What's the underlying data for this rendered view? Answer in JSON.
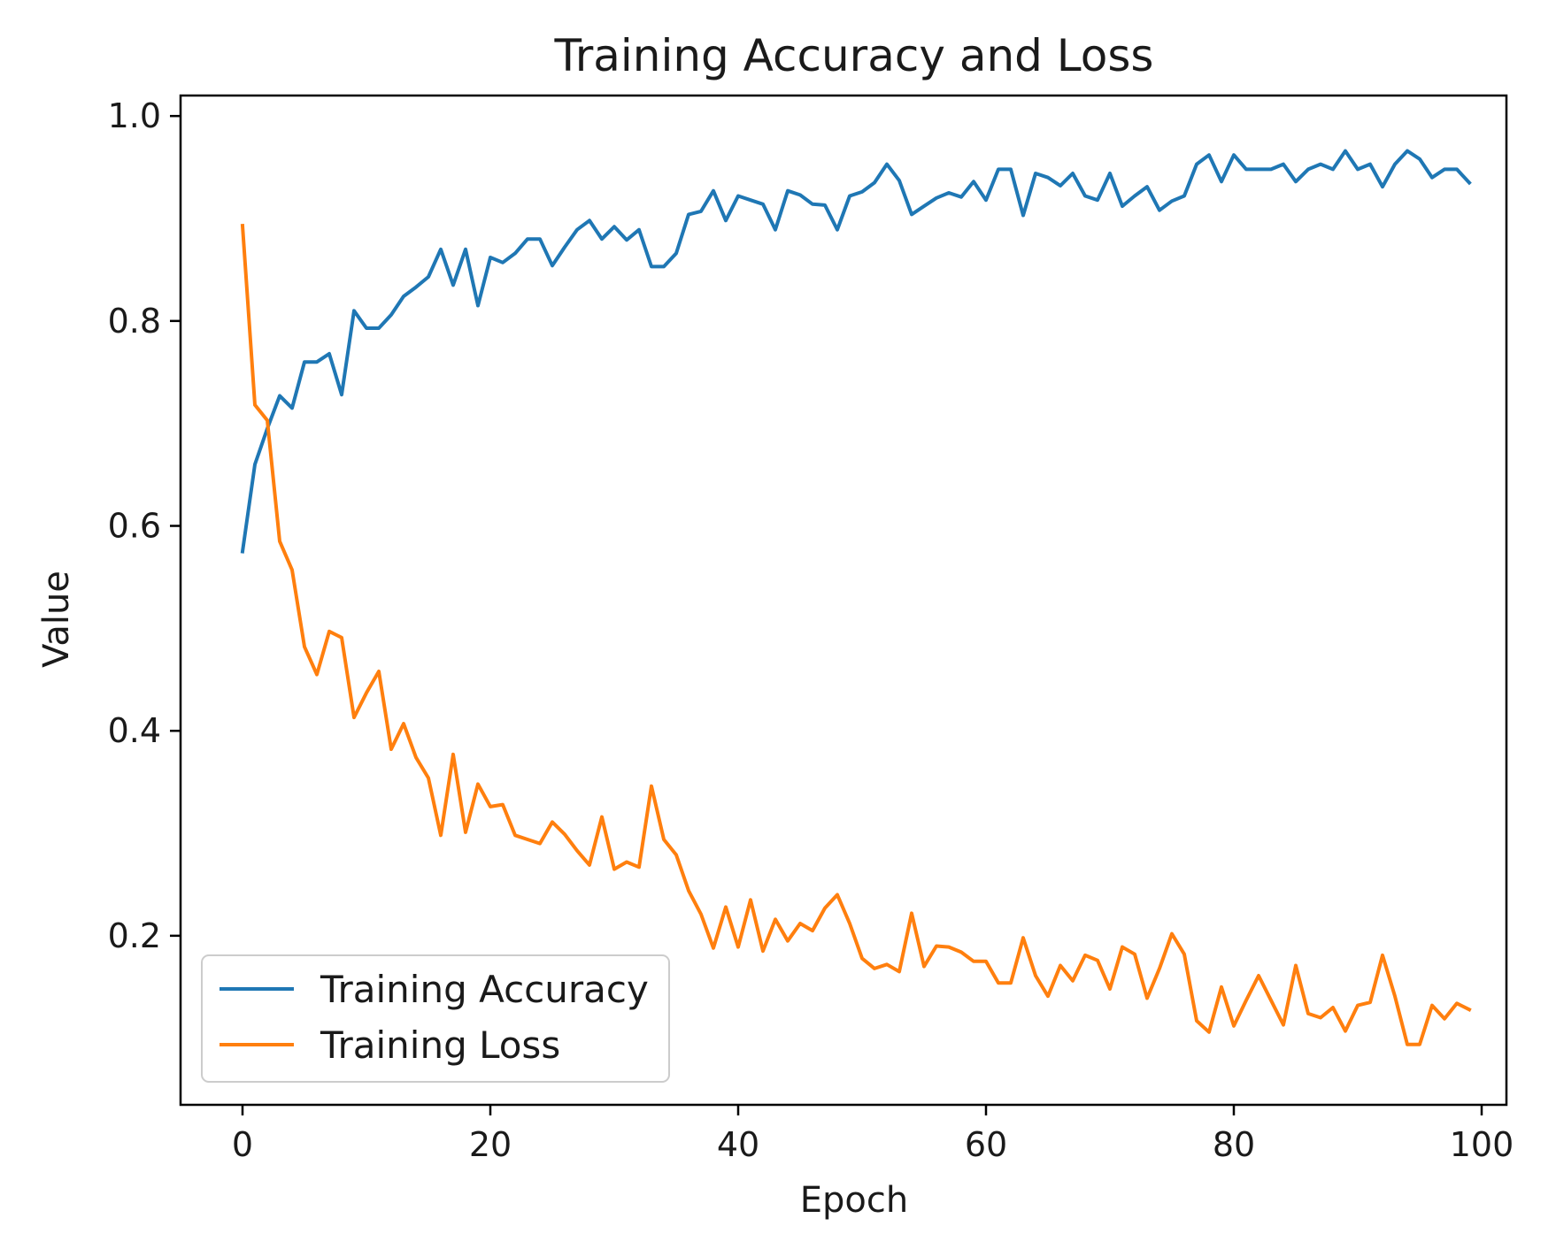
{
  "chart_data": {
    "type": "line",
    "title": "Training Accuracy and Loss",
    "xlabel": "Epoch",
    "ylabel": "Value",
    "xlim": [
      -5,
      102
    ],
    "ylim": [
      0.035,
      1.02
    ],
    "x_ticks": [
      0,
      20,
      40,
      60,
      80,
      100
    ],
    "x_tick_labels": [
      "0",
      "20",
      "40",
      "60",
      "80",
      "100"
    ],
    "y_ticks": [
      0.2,
      0.4,
      0.6,
      0.8,
      1.0
    ],
    "y_tick_labels": [
      "0.2",
      "0.4",
      "0.6",
      "0.8",
      "1.0"
    ],
    "grid": false,
    "legend_position": "lower-left",
    "series": [
      {
        "name": "Training Accuracy",
        "color": "#1f77b4",
        "x": [
          0,
          1,
          2,
          3,
          4,
          5,
          6,
          7,
          8,
          9,
          10,
          11,
          12,
          13,
          14,
          15,
          16,
          17,
          18,
          19,
          20,
          21,
          22,
          23,
          24,
          25,
          26,
          27,
          28,
          29,
          30,
          31,
          32,
          33,
          34,
          35,
          36,
          37,
          38,
          39,
          40,
          41,
          42,
          43,
          44,
          45,
          46,
          47,
          48,
          49,
          50,
          51,
          52,
          53,
          54,
          55,
          56,
          57,
          58,
          59,
          60,
          61,
          62,
          63,
          64,
          65,
          66,
          67,
          68,
          69,
          70,
          71,
          72,
          73,
          74,
          75,
          76,
          77,
          78,
          79,
          80,
          81,
          82,
          83,
          84,
          85,
          86,
          87,
          88,
          89,
          90,
          91,
          92,
          93,
          94,
          95,
          96,
          97,
          98,
          99
        ],
        "values": [
          0.575,
          0.66,
          0.695,
          0.727,
          0.715,
          0.76,
          0.76,
          0.768,
          0.728,
          0.81,
          0.793,
          0.793,
          0.806,
          0.824,
          0.833,
          0.843,
          0.87,
          0.835,
          0.87,
          0.815,
          0.862,
          0.857,
          0.866,
          0.88,
          0.88,
          0.854,
          0.872,
          0.889,
          0.898,
          0.88,
          0.892,
          0.879,
          0.889,
          0.853,
          0.853,
          0.866,
          0.904,
          0.907,
          0.927,
          0.898,
          0.922,
          0.918,
          0.914,
          0.889,
          0.927,
          0.923,
          0.914,
          0.913,
          0.889,
          0.922,
          0.926,
          0.935,
          0.953,
          0.937,
          0.904,
          0.912,
          0.92,
          0.925,
          0.921,
          0.936,
          0.918,
          0.948,
          0.948,
          0.903,
          0.944,
          0.94,
          0.932,
          0.944,
          0.922,
          0.918,
          0.944,
          0.912,
          0.922,
          0.931,
          0.908,
          0.917,
          0.922,
          0.953,
          0.962,
          0.936,
          0.962,
          0.948,
          0.948,
          0.948,
          0.953,
          0.936,
          0.948,
          0.953,
          0.948,
          0.966,
          0.948,
          0.953,
          0.931,
          0.953,
          0.966,
          0.958,
          0.94,
          0.948,
          0.948,
          0.935
        ]
      },
      {
        "name": "Training Loss",
        "color": "#ff7f0e",
        "x": [
          0,
          1,
          2,
          3,
          4,
          5,
          6,
          7,
          8,
          9,
          10,
          11,
          12,
          13,
          14,
          15,
          16,
          17,
          18,
          19,
          20,
          21,
          22,
          23,
          24,
          25,
          26,
          27,
          28,
          29,
          30,
          31,
          32,
          33,
          34,
          35,
          36,
          37,
          38,
          39,
          40,
          41,
          42,
          43,
          44,
          45,
          46,
          47,
          48,
          49,
          50,
          51,
          52,
          53,
          54,
          55,
          56,
          57,
          58,
          59,
          60,
          61,
          62,
          63,
          64,
          65,
          66,
          67,
          68,
          69,
          70,
          71,
          72,
          73,
          74,
          75,
          76,
          77,
          78,
          79,
          80,
          81,
          82,
          83,
          84,
          85,
          86,
          87,
          88,
          89,
          90,
          91,
          92,
          93,
          94,
          95,
          96,
          97,
          98,
          99
        ],
        "values": [
          0.893,
          0.718,
          0.703,
          0.585,
          0.557,
          0.482,
          0.455,
          0.497,
          0.491,
          0.413,
          0.437,
          0.458,
          0.382,
          0.407,
          0.374,
          0.354,
          0.298,
          0.377,
          0.301,
          0.348,
          0.326,
          0.328,
          0.298,
          0.294,
          0.29,
          0.311,
          0.299,
          0.283,
          0.269,
          0.316,
          0.265,
          0.272,
          0.267,
          0.346,
          0.294,
          0.279,
          0.244,
          0.221,
          0.188,
          0.228,
          0.189,
          0.235,
          0.185,
          0.216,
          0.195,
          0.212,
          0.205,
          0.227,
          0.24,
          0.212,
          0.178,
          0.168,
          0.172,
          0.165,
          0.222,
          0.17,
          0.19,
          0.189,
          0.184,
          0.175,
          0.175,
          0.154,
          0.154,
          0.198,
          0.161,
          0.141,
          0.171,
          0.156,
          0.181,
          0.176,
          0.148,
          0.189,
          0.182,
          0.139,
          0.168,
          0.202,
          0.182,
          0.117,
          0.106,
          0.15,
          0.112,
          0.137,
          0.161,
          0.137,
          0.113,
          0.171,
          0.124,
          0.12,
          0.13,
          0.107,
          0.132,
          0.135,
          0.181,
          0.141,
          0.094,
          0.094,
          0.132,
          0.119,
          0.134,
          0.128
        ]
      }
    ]
  }
}
